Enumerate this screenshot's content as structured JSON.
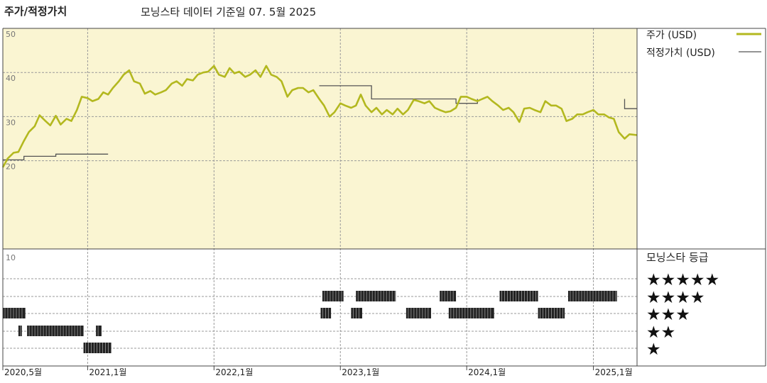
{
  "header": {
    "title": "주가/적정가치",
    "subtitle": "모닝스타 데이터 기준일 07. 5월 2025"
  },
  "chart_data": {
    "type": "line",
    "title": "주가/적정가치",
    "subtitle": "모닝스타 데이터 기준일 07. 5월 2025",
    "ylim": [
      0,
      50
    ],
    "yticks": [
      20,
      30,
      40,
      50
    ],
    "ytick_labels": [
      "20",
      "30",
      "40",
      "50"
    ],
    "x_range": [
      "2020-05-01",
      "2025-05-07"
    ],
    "x_tick_labels": [
      {
        "date": "2020-05-01",
        "label": "2020,5월"
      },
      {
        "date": "2021-01-01",
        "label": "2021,1월"
      },
      {
        "date": "2022-01-01",
        "label": "2022,1월"
      },
      {
        "date": "2023-01-01",
        "label": "2023,1월"
      },
      {
        "date": "2024-01-01",
        "label": "2024,1월"
      },
      {
        "date": "2025-01-01",
        "label": "2025,1월"
      }
    ],
    "grid": true,
    "legend_position": "right",
    "colors": {
      "price": "#b3b81f",
      "fair_value": "#555555",
      "panel_bg": "#faf5d2",
      "rating_bar": "#222222"
    },
    "series": [
      {
        "name": "주가 (USD)",
        "points": [
          [
            "2020-05-01",
            18.5
          ],
          [
            "2020-05-15",
            20.5
          ],
          [
            "2020-06-01",
            21.8
          ],
          [
            "2020-06-15",
            22.0
          ],
          [
            "2020-07-01",
            24.5
          ],
          [
            "2020-07-15",
            26.5
          ],
          [
            "2020-08-01",
            27.8
          ],
          [
            "2020-08-15",
            30.3
          ],
          [
            "2020-09-01",
            29.0
          ],
          [
            "2020-09-15",
            28.0
          ],
          [
            "2020-10-01",
            30.2
          ],
          [
            "2020-10-15",
            28.2
          ],
          [
            "2020-11-01",
            29.5
          ],
          [
            "2020-11-15",
            29.0
          ],
          [
            "2020-12-01",
            31.5
          ],
          [
            "2020-12-15",
            34.5
          ],
          [
            "2021-01-01",
            34.2
          ],
          [
            "2021-01-15",
            33.5
          ],
          [
            "2021-02-01",
            34.0
          ],
          [
            "2021-02-15",
            35.5
          ],
          [
            "2021-03-01",
            35.0
          ],
          [
            "2021-03-15",
            36.5
          ],
          [
            "2021-04-01",
            38.0
          ],
          [
            "2021-04-15",
            39.5
          ],
          [
            "2021-05-01",
            40.5
          ],
          [
            "2021-05-15",
            38.0
          ],
          [
            "2021-06-01",
            37.5
          ],
          [
            "2021-06-15",
            35.2
          ],
          [
            "2021-07-01",
            35.8
          ],
          [
            "2021-07-15",
            35.0
          ],
          [
            "2021-08-01",
            35.5
          ],
          [
            "2021-08-15",
            36.0
          ],
          [
            "2021-09-01",
            37.5
          ],
          [
            "2021-09-15",
            38.0
          ],
          [
            "2021-10-01",
            37.0
          ],
          [
            "2021-10-15",
            38.5
          ],
          [
            "2021-11-01",
            38.2
          ],
          [
            "2021-11-15",
            39.5
          ],
          [
            "2021-12-01",
            40.0
          ],
          [
            "2021-12-15",
            40.2
          ],
          [
            "2022-01-01",
            41.5
          ],
          [
            "2022-01-15",
            39.5
          ],
          [
            "2022-02-01",
            39.0
          ],
          [
            "2022-02-15",
            41.0
          ],
          [
            "2022-03-01",
            39.8
          ],
          [
            "2022-03-15",
            40.2
          ],
          [
            "2022-04-01",
            39.0
          ],
          [
            "2022-04-15",
            39.5
          ],
          [
            "2022-05-01",
            40.5
          ],
          [
            "2022-05-15",
            39.0
          ],
          [
            "2022-06-01",
            41.5
          ],
          [
            "2022-06-15",
            39.5
          ],
          [
            "2022-07-01",
            39.0
          ],
          [
            "2022-07-15",
            38.0
          ],
          [
            "2022-08-01",
            34.5
          ],
          [
            "2022-08-15",
            36.0
          ],
          [
            "2022-09-01",
            36.5
          ],
          [
            "2022-09-15",
            36.5
          ],
          [
            "2022-10-01",
            35.5
          ],
          [
            "2022-10-15",
            36.0
          ],
          [
            "2022-11-01",
            34.0
          ],
          [
            "2022-11-15",
            32.5
          ],
          [
            "2022-12-01",
            30.0
          ],
          [
            "2022-12-15",
            31.0
          ],
          [
            "2023-01-01",
            33.0
          ],
          [
            "2023-01-15",
            32.5
          ],
          [
            "2023-02-01",
            32.0
          ],
          [
            "2023-02-15",
            32.5
          ],
          [
            "2023-03-01",
            35.0
          ],
          [
            "2023-03-15",
            32.5
          ],
          [
            "2023-04-01",
            31.0
          ],
          [
            "2023-04-15",
            32.0
          ],
          [
            "2023-05-01",
            30.5
          ],
          [
            "2023-05-15",
            31.5
          ],
          [
            "2023-06-01",
            30.5
          ],
          [
            "2023-06-15",
            31.8
          ],
          [
            "2023-07-01",
            30.5
          ],
          [
            "2023-07-15",
            31.5
          ],
          [
            "2023-08-01",
            33.8
          ],
          [
            "2023-08-15",
            33.5
          ],
          [
            "2023-09-01",
            33.0
          ],
          [
            "2023-09-15",
            33.5
          ],
          [
            "2023-10-01",
            32.0
          ],
          [
            "2023-10-15",
            31.5
          ],
          [
            "2023-11-01",
            31.0
          ],
          [
            "2023-11-15",
            31.2
          ],
          [
            "2023-12-01",
            32.0
          ],
          [
            "2023-12-15",
            34.5
          ],
          [
            "2024-01-01",
            34.5
          ],
          [
            "2024-01-15",
            34.0
          ],
          [
            "2024-02-01",
            33.5
          ],
          [
            "2024-02-15",
            34.0
          ],
          [
            "2024-03-01",
            34.5
          ],
          [
            "2024-03-15",
            33.5
          ],
          [
            "2024-04-01",
            32.5
          ],
          [
            "2024-04-15",
            31.5
          ],
          [
            "2024-05-01",
            32.0
          ],
          [
            "2024-05-15",
            31.0
          ],
          [
            "2024-06-01",
            28.8
          ],
          [
            "2024-06-15",
            31.8
          ],
          [
            "2024-07-01",
            32.0
          ],
          [
            "2024-07-15",
            31.5
          ],
          [
            "2024-08-01",
            31.0
          ],
          [
            "2024-08-15",
            33.5
          ],
          [
            "2024-09-01",
            32.5
          ],
          [
            "2024-09-15",
            32.5
          ],
          [
            "2024-10-01",
            31.8
          ],
          [
            "2024-10-15",
            29.0
          ],
          [
            "2024-11-01",
            29.5
          ],
          [
            "2024-11-15",
            30.5
          ],
          [
            "2024-12-01",
            30.5
          ],
          [
            "2024-12-15",
            31.0
          ],
          [
            "2025-01-01",
            31.5
          ],
          [
            "2025-01-15",
            30.5
          ],
          [
            "2025-02-01",
            30.5
          ],
          [
            "2025-02-15",
            29.8
          ],
          [
            "2025-03-01",
            29.5
          ],
          [
            "2025-03-15",
            26.5
          ],
          [
            "2025-04-01",
            25.0
          ],
          [
            "2025-04-15",
            26.0
          ],
          [
            "2025-05-07",
            25.8
          ]
        ]
      },
      {
        "name": "적정가치 (USD)",
        "points": [
          [
            "2020-05-01",
            20.2
          ],
          [
            "2020-07-01",
            20.2
          ],
          [
            "2020-07-01",
            21.0
          ],
          [
            "2020-10-01",
            21.0
          ],
          [
            "2020-10-01",
            21.5
          ],
          [
            "2021-03-01",
            21.5
          ],
          [
            "2022-11-01",
            37.0
          ],
          [
            "2023-04-01",
            37.0
          ],
          [
            "2023-04-01",
            34.0
          ],
          [
            "2023-12-01",
            34.0
          ],
          [
            "2023-12-01",
            33.0
          ],
          [
            "2024-02-01",
            33.0
          ],
          [
            "2024-02-01",
            34.0
          ],
          [
            "2025-04-01",
            34.0
          ],
          [
            "2025-04-01",
            31.8
          ],
          [
            "2025-05-07",
            31.8
          ]
        ]
      }
    ],
    "rating_panel": {
      "title": "모닝스타 등급",
      "ytick_label": "10",
      "levels": [
        {
          "stars": 5,
          "label": "★★★★★",
          "segments": []
        },
        {
          "stars": 4,
          "label": "★★★★",
          "segments": [
            [
              "2022-11-10",
              "2023-01-10"
            ],
            [
              "2023-02-15",
              "2023-06-10"
            ],
            [
              "2023-10-15",
              "2023-12-01"
            ],
            [
              "2024-04-05",
              "2024-07-25"
            ],
            [
              "2024-10-20",
              "2025-03-10"
            ]
          ]
        },
        {
          "stars": 3,
          "label": "★★★",
          "segments": [
            [
              "2020-05-01",
              "2020-07-05"
            ],
            [
              "2022-11-05",
              "2022-12-05"
            ],
            [
              "2023-02-01",
              "2023-03-05"
            ],
            [
              "2023-07-10",
              "2023-09-20"
            ],
            [
              "2023-11-10",
              "2024-03-20"
            ],
            [
              "2024-07-25",
              "2024-10-10"
            ]
          ]
        },
        {
          "stars": 2,
          "label": "★★",
          "segments": [
            [
              "2020-06-15",
              "2020-06-25"
            ],
            [
              "2020-07-10",
              "2020-12-20"
            ],
            [
              "2021-01-25",
              "2021-02-10"
            ]
          ]
        },
        {
          "stars": 1,
          "label": "★",
          "segments": [
            [
              "2020-12-20",
              "2021-03-10"
            ]
          ]
        }
      ]
    }
  }
}
